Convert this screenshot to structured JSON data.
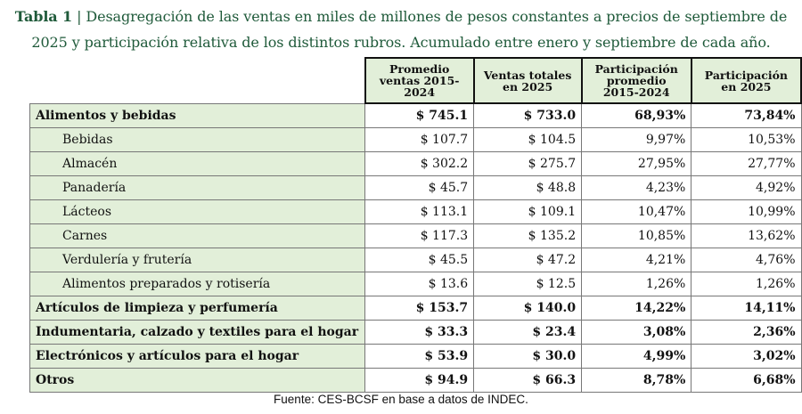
{
  "title": {
    "prefix": "Tabla 1",
    "sep": " | ",
    "text": "Desagregación de las ventas en miles de millones de pesos constantes a precios de septiembre de 2025 y participación relativa de los distintos rubros. Acumulado entre enero y septiembre de cada año."
  },
  "headers": [
    "Promedio ventas 2015-2024",
    "Ventas totales en 2025",
    "Participación promedio 2015-2024",
    "Participación en 2025"
  ],
  "rows": [
    {
      "label": "Alimentos y bebidas",
      "bold": true,
      "sub": false,
      "v": [
        "$ 745.1",
        "$ 733.0",
        "68,93%",
        "73,84%"
      ]
    },
    {
      "label": "Bebidas",
      "bold": false,
      "sub": true,
      "v": [
        "$ 107.7",
        "$ 104.5",
        "9,97%",
        "10,53%"
      ]
    },
    {
      "label": "Almacén",
      "bold": false,
      "sub": true,
      "v": [
        "$ 302.2",
        "$ 275.7",
        "27,95%",
        "27,77%"
      ]
    },
    {
      "label": "Panadería",
      "bold": false,
      "sub": true,
      "v": [
        "$ 45.7",
        "$ 48.8",
        "4,23%",
        "4,92%"
      ]
    },
    {
      "label": "Lácteos",
      "bold": false,
      "sub": true,
      "v": [
        "$ 113.1",
        "$ 109.1",
        "10,47%",
        "10,99%"
      ]
    },
    {
      "label": "Carnes",
      "bold": false,
      "sub": true,
      "v": [
        "$ 117.3",
        "$ 135.2",
        "10,85%",
        "13,62%"
      ]
    },
    {
      "label": "Verdulería y frutería",
      "bold": false,
      "sub": true,
      "v": [
        "$ 45.5",
        "$ 47.2",
        "4,21%",
        "4,76%"
      ]
    },
    {
      "label": "Alimentos preparados y rotisería",
      "bold": false,
      "sub": true,
      "v": [
        "$ 13.6",
        "$ 12.5",
        "1,26%",
        "1,26%"
      ]
    },
    {
      "label": "Artículos de limpieza y perfumería",
      "bold": true,
      "sub": false,
      "v": [
        "$ 153.7",
        "$ 140.0",
        "14,22%",
        "14,11%"
      ]
    },
    {
      "label": "Indumentaria, calzado y textiles para el hogar",
      "bold": true,
      "sub": false,
      "v": [
        "$ 33.3",
        "$ 23.4",
        "3,08%",
        "2,36%"
      ]
    },
    {
      "label": "Electrónicos y artículos para el hogar",
      "bold": true,
      "sub": false,
      "v": [
        "$ 53.9",
        "$ 30.0",
        "4,99%",
        "3,02%"
      ]
    },
    {
      "label": "Otros",
      "bold": true,
      "sub": false,
      "v": [
        "$ 94.9",
        "$ 66.3",
        "8,78%",
        "6,68%"
      ]
    }
  ],
  "source": "Fuente: CES-BCSF en base a datos de INDEC."
}
